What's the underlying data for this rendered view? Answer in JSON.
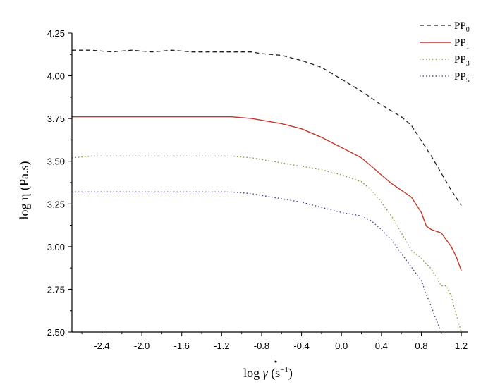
{
  "chart_data": {
    "type": "line",
    "title": "",
    "xlabel": {
      "base": "log ",
      "symbol": "γ",
      "open": " (s",
      "exp": "−1",
      "close": ")"
    },
    "ylabel": "log η (Pa.s)",
    "xlim": [
      -2.7,
      1.27
    ],
    "ylim": [
      2.5,
      4.25
    ],
    "xticks": [
      -2.4,
      -2.0,
      -1.6,
      -1.2,
      -0.8,
      -0.4,
      0.0,
      0.4,
      0.8,
      1.2
    ],
    "xtick_labels": [
      "-2.4",
      "-2.0",
      "-1.6",
      "-1.2",
      "-0.8",
      "-0.4",
      "0.0",
      "0.4",
      "0.8",
      "1.2"
    ],
    "yticks": [
      2.5,
      2.75,
      3.0,
      3.25,
      3.5,
      3.75,
      4.0,
      4.25
    ],
    "ytick_labels": [
      "2.50",
      "2.75",
      "3.00",
      "3.25",
      "3.50",
      "3.75",
      "4.00",
      "4.25"
    ],
    "legend_position": "top-right",
    "series": [
      {
        "name": "PP0",
        "base": "PP",
        "sub": "0",
        "color": "#222222",
        "style": "dashed",
        "x": [
          -2.7,
          -2.5,
          -2.3,
          -2.1,
          -1.9,
          -1.7,
          -1.5,
          -1.3,
          -1.1,
          -0.9,
          -0.8,
          -0.6,
          -0.4,
          -0.2,
          0.0,
          0.2,
          0.4,
          0.6,
          0.7,
          0.8,
          0.9,
          1.0,
          1.1,
          1.2
        ],
        "values": [
          4.15,
          4.15,
          4.14,
          4.15,
          4.14,
          4.15,
          4.14,
          4.14,
          4.14,
          4.14,
          4.13,
          4.12,
          4.09,
          4.05,
          3.98,
          3.91,
          3.83,
          3.76,
          3.71,
          3.62,
          3.53,
          3.43,
          3.33,
          3.24
        ]
      },
      {
        "name": "PP1",
        "base": "PP",
        "sub": "1",
        "color": "#c0392b",
        "style": "solid",
        "x": [
          -2.7,
          -2.5,
          -2.3,
          -2.1,
          -1.9,
          -1.7,
          -1.5,
          -1.3,
          -1.1,
          -0.9,
          -0.8,
          -0.6,
          -0.4,
          -0.2,
          0.0,
          0.2,
          0.3,
          0.4,
          0.5,
          0.6,
          0.7,
          0.8,
          0.85,
          0.9,
          1.0,
          1.1,
          1.15,
          1.2
        ],
        "values": [
          3.76,
          3.76,
          3.76,
          3.76,
          3.76,
          3.76,
          3.76,
          3.76,
          3.76,
          3.75,
          3.74,
          3.72,
          3.69,
          3.64,
          3.58,
          3.52,
          3.47,
          3.42,
          3.37,
          3.33,
          3.29,
          3.2,
          3.12,
          3.1,
          3.08,
          3.0,
          2.94,
          2.86
        ]
      },
      {
        "name": "PP3",
        "base": "PP",
        "sub": "3",
        "color": "#8a8a3c",
        "style": "dotted",
        "x": [
          -2.7,
          -2.5,
          -2.3,
          -2.1,
          -1.9,
          -1.7,
          -1.5,
          -1.3,
          -1.1,
          -0.9,
          -0.8,
          -0.6,
          -0.4,
          -0.2,
          0.0,
          0.2,
          0.3,
          0.4,
          0.5,
          0.6,
          0.7,
          0.8,
          0.9,
          0.95,
          1.0,
          1.05,
          1.1,
          1.15,
          1.2
        ],
        "values": [
          3.52,
          3.53,
          3.53,
          3.53,
          3.53,
          3.53,
          3.53,
          3.53,
          3.53,
          3.52,
          3.51,
          3.49,
          3.47,
          3.45,
          3.42,
          3.38,
          3.33,
          3.26,
          3.18,
          3.08,
          2.98,
          2.93,
          2.87,
          2.82,
          2.77,
          2.77,
          2.71,
          2.6,
          2.5
        ]
      },
      {
        "name": "PP5",
        "base": "PP",
        "sub": "5",
        "color": "#3a3a8c",
        "style": "dotted",
        "x": [
          -2.7,
          -2.5,
          -2.3,
          -2.1,
          -1.9,
          -1.7,
          -1.5,
          -1.3,
          -1.1,
          -0.9,
          -0.8,
          -0.6,
          -0.4,
          -0.2,
          0.0,
          0.2,
          0.3,
          0.4,
          0.5,
          0.6,
          0.7,
          0.8,
          0.85,
          0.9,
          0.95,
          1.0
        ],
        "values": [
          3.32,
          3.32,
          3.32,
          3.32,
          3.32,
          3.32,
          3.32,
          3.32,
          3.32,
          3.31,
          3.3,
          3.28,
          3.26,
          3.23,
          3.2,
          3.18,
          3.15,
          3.1,
          3.04,
          2.96,
          2.88,
          2.8,
          2.72,
          2.65,
          2.57,
          2.5
        ]
      }
    ]
  }
}
